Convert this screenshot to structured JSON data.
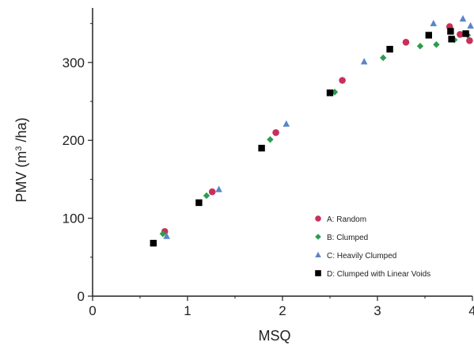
{
  "chart_data": {
    "type": "scatter",
    "title": "",
    "xlabel": "MSQ",
    "ylabel_main": "PMV (m",
    "ylabel_sup": "3",
    "ylabel_tail": " /ha)",
    "xlim": [
      0,
      4
    ],
    "ylim": [
      0,
      370
    ],
    "xticks": [
      0,
      1,
      2,
      3,
      4
    ],
    "xtick_labels": [
      "0",
      "1",
      "2",
      "3",
      "4"
    ],
    "yticks": [
      0,
      100,
      200,
      300
    ],
    "ytick_labels": [
      "0",
      "100",
      "200",
      "300"
    ],
    "grid": false,
    "legend_position": "lower-right",
    "series": [
      {
        "name": "A: Random",
        "marker": "circle",
        "color": "#c8305a",
        "points": [
          [
            0.76,
            83
          ],
          [
            1.26,
            134
          ],
          [
            1.93,
            210
          ],
          [
            2.63,
            277
          ],
          [
            3.3,
            326
          ],
          [
            3.76,
            346
          ],
          [
            3.87,
            336
          ],
          [
            3.97,
            328
          ]
        ]
      },
      {
        "name": "B: Clumped",
        "marker": "diamond",
        "color": "#2e9b4f",
        "points": [
          [
            0.74,
            80
          ],
          [
            1.2,
            129
          ],
          [
            1.87,
            201
          ],
          [
            2.55,
            262
          ],
          [
            3.06,
            306
          ],
          [
            3.45,
            321
          ],
          [
            3.62,
            323
          ],
          [
            3.81,
            329
          ],
          [
            3.95,
            335
          ]
        ]
      },
      {
        "name": "C: Heavily Clumped",
        "marker": "triangle",
        "color": "#5c86c5",
        "points": [
          [
            0.78,
            77
          ],
          [
            1.33,
            137
          ],
          [
            2.04,
            221
          ],
          [
            2.86,
            301
          ],
          [
            3.59,
            350
          ],
          [
            3.9,
            356
          ],
          [
            3.98,
            347
          ]
        ]
      },
      {
        "name": "D: Clumped with Linear Voids",
        "marker": "square",
        "color": "#000000",
        "points": [
          [
            0.64,
            68
          ],
          [
            1.12,
            120
          ],
          [
            1.78,
            190
          ],
          [
            2.5,
            261
          ],
          [
            3.13,
            317
          ],
          [
            3.54,
            335
          ],
          [
            3.78,
            330
          ],
          [
            3.77,
            340
          ],
          [
            3.93,
            337
          ]
        ]
      }
    ]
  }
}
